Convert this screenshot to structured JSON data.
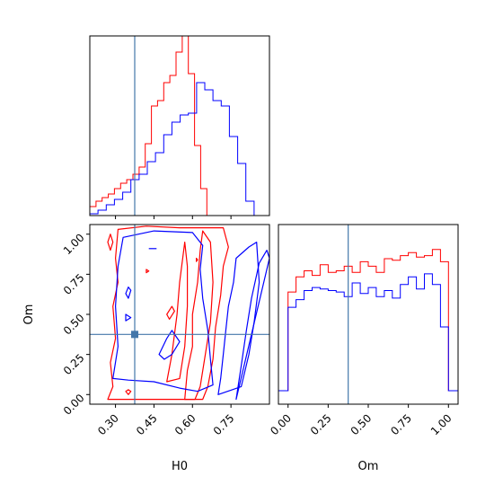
{
  "chart_data": [
    {
      "type": "histogram",
      "panel": "H0 marginal",
      "xlim": [
        0.2,
        0.9
      ],
      "x_ticks": [
        0.3,
        0.45,
        0.6,
        0.75
      ],
      "truth_line": 0.375,
      "series": [
        {
          "color": "#ff0000",
          "bin_edges": [
            0.2,
            0.224,
            0.248,
            0.272,
            0.296,
            0.32,
            0.344,
            0.368,
            0.392,
            0.416,
            0.44,
            0.464,
            0.488,
            0.512,
            0.536,
            0.56,
            0.584,
            0.608,
            0.632,
            0.656,
            0.68
          ],
          "counts": [
            0.05,
            0.08,
            0.1,
            0.12,
            0.15,
            0.18,
            0.2,
            0.23,
            0.27,
            0.4,
            0.61,
            0.64,
            0.74,
            0.78,
            0.91,
            1.0,
            0.79,
            0.39,
            0.15,
            0.0
          ]
        },
        {
          "color": "#0000ff",
          "bin_edges": [
            0.2,
            0.232,
            0.264,
            0.296,
            0.328,
            0.36,
            0.392,
            0.424,
            0.456,
            0.488,
            0.52,
            0.552,
            0.584,
            0.616,
            0.648,
            0.68,
            0.712,
            0.744,
            0.776,
            0.808,
            0.84
          ],
          "counts": [
            0.01,
            0.03,
            0.06,
            0.09,
            0.13,
            0.2,
            0.23,
            0.3,
            0.35,
            0.45,
            0.52,
            0.56,
            0.57,
            0.74,
            0.7,
            0.64,
            0.61,
            0.44,
            0.29,
            0.08
          ]
        }
      ]
    },
    {
      "type": "histogram",
      "panel": "Om marginal",
      "xlim": [
        -0.06,
        1.06
      ],
      "x_ticks": [
        0.0,
        0.25,
        0.5,
        0.75,
        1.0
      ],
      "x_tick_labels": [
        "0.00",
        "0.25",
        "0.50",
        "0.75",
        "1.00"
      ],
      "xlabel": "Om",
      "truth_line": 0.375,
      "series": [
        {
          "color": "#ff0000",
          "bin_edges": [
            0.0,
            0.05,
            0.1,
            0.15,
            0.2,
            0.25,
            0.3,
            0.35,
            0.4,
            0.45,
            0.5,
            0.55,
            0.6,
            0.65,
            0.7,
            0.75,
            0.8,
            0.85,
            0.9,
            0.95,
            1.0
          ],
          "counts": [
            0.65,
            0.75,
            0.79,
            0.76,
            0.83,
            0.78,
            0.79,
            0.82,
            0.78,
            0.85,
            0.82,
            0.78,
            0.87,
            0.86,
            0.89,
            0.91,
            0.88,
            0.89,
            0.93,
            0.85
          ]
        },
        {
          "color": "#0000ff",
          "bin_edges": [
            0.0,
            0.05,
            0.1,
            0.15,
            0.2,
            0.25,
            0.3,
            0.35,
            0.4,
            0.45,
            0.5,
            0.55,
            0.6,
            0.65,
            0.7,
            0.75,
            0.8,
            0.85,
            0.9,
            0.95,
            1.0
          ],
          "counts": [
            0.55,
            0.6,
            0.66,
            0.68,
            0.67,
            0.66,
            0.65,
            0.62,
            0.71,
            0.64,
            0.68,
            0.62,
            0.66,
            0.61,
            0.7,
            0.75,
            0.67,
            0.77,
            0.7,
            0.42
          ]
        }
      ]
    },
    {
      "type": "contour",
      "panel": "H0 vs Om joint",
      "xlabel": "H0",
      "ylabel": "Om",
      "xlim": [
        0.2,
        0.9
      ],
      "ylim": [
        -0.06,
        1.06
      ],
      "x_ticks": [
        0.3,
        0.45,
        0.6,
        0.75
      ],
      "x_tick_labels": [
        "0.30",
        "0.45",
        "0.60",
        "0.75"
      ],
      "y_ticks": [
        0.0,
        0.25,
        0.5,
        0.75,
        1.0
      ],
      "y_tick_labels": [
        "0.00",
        "0.25",
        "0.50",
        "0.75",
        "1.00"
      ],
      "truth_point": [
        0.375,
        0.375
      ],
      "truth_lines": {
        "x": 0.375,
        "y": 0.375
      },
      "series": [
        {
          "color": "#ff0000",
          "contours": [
            [
              [
                0.27,
                -0.03
              ],
              [
                0.29,
                0.05
              ],
              [
                0.28,
                0.2
              ],
              [
                0.3,
                0.35
              ],
              [
                0.29,
                0.55
              ],
              [
                0.31,
                0.7
              ],
              [
                0.3,
                0.85
              ],
              [
                0.31,
                1.03
              ],
              [
                0.42,
                1.05
              ],
              [
                0.55,
                1.04
              ],
              [
                0.72,
                1.04
              ],
              [
                0.74,
                0.92
              ],
              [
                0.72,
                0.8
              ],
              [
                0.71,
                0.62
              ],
              [
                0.69,
                0.42
              ],
              [
                0.68,
                0.22
              ],
              [
                0.66,
                0.05
              ],
              [
                0.64,
                -0.03
              ]
            ],
            [
              [
                0.57,
                -0.03
              ],
              [
                0.58,
                0.15
              ],
              [
                0.6,
                0.3
              ],
              [
                0.6,
                0.5
              ],
              [
                0.62,
                0.7
              ],
              [
                0.63,
                0.9
              ],
              [
                0.64,
                1.02
              ],
              [
                0.67,
                0.95
              ],
              [
                0.68,
                0.7
              ],
              [
                0.67,
                0.45
              ],
              [
                0.65,
                0.25
              ],
              [
                0.63,
                0.05
              ],
              [
                0.61,
                -0.03
              ]
            ],
            [
              [
                0.5,
                0.08
              ],
              [
                0.52,
                0.25
              ],
              [
                0.54,
                0.5
              ],
              [
                0.55,
                0.7
              ],
              [
                0.57,
                0.95
              ],
              [
                0.58,
                0.8
              ],
              [
                0.58,
                0.55
              ],
              [
                0.57,
                0.3
              ],
              [
                0.55,
                0.1
              ]
            ],
            [
              [
                0.28,
                0.9
              ],
              [
                0.29,
                0.95
              ],
              [
                0.28,
                1.0
              ],
              [
                0.27,
                0.95
              ]
            ],
            [
              [
                0.35,
                0.0
              ],
              [
                0.36,
                0.02
              ],
              [
                0.35,
                0.03
              ],
              [
                0.34,
                0.02
              ]
            ],
            [
              [
                0.51,
                0.47
              ],
              [
                0.53,
                0.52
              ],
              [
                0.52,
                0.55
              ],
              [
                0.5,
                0.5
              ]
            ],
            [
              [
                0.615,
                0.83
              ],
              [
                0.62,
                0.84
              ],
              [
                0.615,
                0.85
              ]
            ],
            [
              [
                0.42,
                0.76
              ],
              [
                0.43,
                0.77
              ],
              [
                0.42,
                0.78
              ]
            ]
          ]
        },
        {
          "color": "#0000ff",
          "contours": [
            [
              [
                0.29,
                0.1
              ],
              [
                0.31,
                0.3
              ],
              [
                0.3,
                0.55
              ],
              [
                0.31,
                0.8
              ],
              [
                0.33,
                0.98
              ],
              [
                0.45,
                1.02
              ],
              [
                0.6,
                1.01
              ],
              [
                0.64,
                0.93
              ],
              [
                0.63,
                0.78
              ],
              [
                0.64,
                0.6
              ],
              [
                0.66,
                0.4
              ],
              [
                0.67,
                0.22
              ],
              [
                0.68,
                0.06
              ],
              [
                0.62,
                0.02
              ],
              [
                0.55,
                0.04
              ],
              [
                0.45,
                0.08
              ],
              [
                0.35,
                0.09
              ]
            ],
            [
              [
                0.7,
                0.0
              ],
              [
                0.71,
                0.1
              ],
              [
                0.72,
                0.25
              ],
              [
                0.73,
                0.4
              ],
              [
                0.74,
                0.55
              ],
              [
                0.76,
                0.7
              ],
              [
                0.77,
                0.85
              ],
              [
                0.82,
                0.92
              ],
              [
                0.85,
                0.95
              ],
              [
                0.86,
                0.7
              ],
              [
                0.84,
                0.45
              ],
              [
                0.82,
                0.25
              ],
              [
                0.79,
                0.05
              ]
            ],
            [
              [
                0.77,
                -0.03
              ],
              [
                0.79,
                0.18
              ],
              [
                0.81,
                0.4
              ],
              [
                0.83,
                0.6
              ],
              [
                0.86,
                0.82
              ],
              [
                0.89,
                0.9
              ],
              [
                0.9,
                0.85
              ]
            ],
            [
              [
                0.47,
                0.25
              ],
              [
                0.5,
                0.35
              ],
              [
                0.52,
                0.4
              ],
              [
                0.55,
                0.33
              ],
              [
                0.52,
                0.25
              ],
              [
                0.49,
                0.22
              ]
            ],
            [
              [
                0.35,
                0.6
              ],
              [
                0.36,
                0.65
              ],
              [
                0.35,
                0.67
              ],
              [
                0.34,
                0.63
              ]
            ],
            [
              [
                0.34,
                0.46
              ],
              [
                0.36,
                0.48
              ],
              [
                0.34,
                0.5
              ]
            ],
            [
              [
                0.43,
                0.91
              ],
              [
                0.46,
                0.91
              ]
            ]
          ]
        }
      ]
    }
  ]
}
